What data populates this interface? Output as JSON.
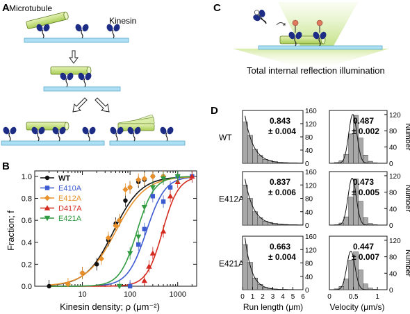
{
  "panels": {
    "A": {
      "letter": "A",
      "microtubule_label": "Microtubule",
      "kinesin_label": "Kinesin"
    },
    "C": {
      "letter": "C",
      "caption": "Total internal reflection illumination"
    },
    "B": {
      "letter": "B",
      "ylabel": "Fraction; f",
      "xlabel": "Kinesin density; ρ (μm⁻²)",
      "y_ticks": [
        "0.0",
        "0.2",
        "0.4",
        "0.6",
        "0.8",
        "1.0"
      ],
      "x_ticks": [
        "10",
        "100",
        "1000"
      ]
    },
    "D": {
      "letter": "D",
      "rows": [
        "WT",
        "E412A",
        "E421A"
      ],
      "run_xlabel": "Run length (μm)",
      "vel_xlabel": "Velocity (μm/s)",
      "run_x_ticks": [
        "0",
        "1",
        "2",
        "3",
        "4",
        "5",
        "6"
      ],
      "vel_x_ticks": [
        "0",
        "0.5",
        "1"
      ],
      "run_y_ticks": [
        "0",
        "40",
        "80",
        "120",
        "160"
      ],
      "vel_y_ticks": [
        "0",
        "40",
        "80",
        "120"
      ],
      "vel_y_label": "Number",
      "run_values": [
        {
          "mean": "0.843",
          "err": "± 0.004"
        },
        {
          "mean": "0.837",
          "err": "± 0.006"
        },
        {
          "mean": "0.663",
          "err": "± 0.004"
        }
      ],
      "vel_values": [
        {
          "mean": "0.487",
          "err": "± 0.002"
        },
        {
          "mean": "0.473",
          "err": "± 0.005"
        },
        {
          "mean": "0.447",
          "err": "± 0.007"
        }
      ]
    }
  },
  "colors": {
    "WT": "#111111",
    "E410A": "#3d5bd1",
    "E412A": "#e8902a",
    "D417A": "#d42a1f",
    "E421A": "#2f9a3f",
    "microtubule": "#c9e38a",
    "slide": "#aee0f5",
    "kinesin_head": "#1d2c84",
    "hist_bar": "#a8a8a8"
  },
  "chart_data": {
    "type": "scatter",
    "xscale": "log",
    "xlim": [
      1,
      2500
    ],
    "ylim": [
      0,
      1.05
    ],
    "xlabel": "Kinesin density; ρ (μm⁻²)",
    "ylabel": "Fraction; f",
    "legend_position": "top-left",
    "series": [
      {
        "name": "WT",
        "marker": "circle",
        "x": [
          2,
          10,
          20,
          35,
          50,
          60,
          80,
          100,
          150,
          200,
          300,
          500,
          1000
        ],
        "y": [
          0.0,
          0.12,
          0.2,
          0.42,
          0.57,
          0.6,
          0.78,
          0.9,
          0.95,
          0.97,
          1.0,
          1.0,
          1.0
        ]
      },
      {
        "name": "E410A",
        "marker": "square",
        "x": [
          100,
          150,
          200,
          300,
          500,
          700,
          1000,
          2000
        ],
        "y": [
          0.0,
          0.38,
          0.52,
          0.82,
          0.77,
          0.9,
          1.0,
          1.0
        ]
      },
      {
        "name": "E412A",
        "marker": "diamond",
        "x": [
          5,
          10,
          25,
          35,
          50,
          60,
          80,
          100,
          150,
          200,
          300,
          500
        ],
        "y": [
          0.02,
          0.12,
          0.25,
          0.44,
          0.55,
          0.6,
          0.88,
          0.9,
          0.97,
          0.98,
          1.0,
          1.0
        ]
      },
      {
        "name": "D417A",
        "marker": "triangle",
        "x": [
          200,
          250,
          300,
          500,
          700,
          1000,
          2000
        ],
        "y": [
          0.05,
          0.18,
          0.3,
          0.5,
          0.82,
          0.95,
          1.0
        ]
      },
      {
        "name": "E421A",
        "marker": "triangle-down",
        "x": [
          60,
          100,
          150,
          200,
          300,
          500,
          1000
        ],
        "y": [
          0.0,
          0.3,
          0.45,
          0.72,
          0.9,
          0.98,
          1.0
        ]
      }
    ]
  }
}
